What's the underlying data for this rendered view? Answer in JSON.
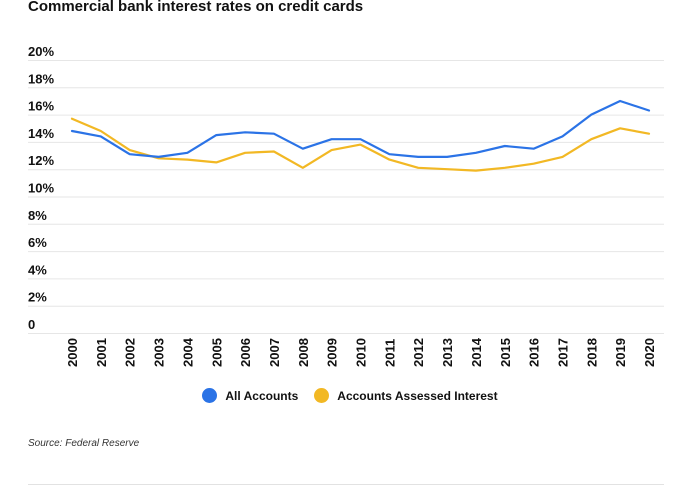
{
  "chart_data": {
    "type": "line",
    "title": "Commercial bank interest rates on credit cards",
    "xlabel": "",
    "ylabel": "",
    "x": [
      "2000",
      "2001",
      "2002",
      "2003",
      "2004",
      "2005",
      "2006",
      "2007",
      "2008",
      "2009",
      "2010",
      "2011",
      "2012",
      "2013",
      "2014",
      "2015",
      "2016",
      "2017",
      "2018",
      "2019",
      "2020"
    ],
    "ylim": [
      0,
      20
    ],
    "yticks": [
      0,
      2,
      4,
      6,
      8,
      10,
      12,
      14,
      16,
      18,
      20
    ],
    "ytick_labels": [
      "0",
      "2%",
      "4%",
      "6%",
      "8%",
      "10%",
      "12%",
      "14%",
      "16%",
      "18%",
      "20%"
    ],
    "grid": true,
    "legend_position": "bottom",
    "series": [
      {
        "name": "All Accounts",
        "color": "#2b73e6",
        "values": [
          14.8,
          14.4,
          13.1,
          12.9,
          13.2,
          14.5,
          14.7,
          14.6,
          13.5,
          14.2,
          14.2,
          13.1,
          12.9,
          12.9,
          13.2,
          13.7,
          13.5,
          14.4,
          16.0,
          17.0,
          16.3
        ]
      },
      {
        "name": "Accounts Assessed Interest",
        "color": "#f2b824",
        "values": [
          15.7,
          14.8,
          13.4,
          12.8,
          12.7,
          12.5,
          13.2,
          13.3,
          12.1,
          13.4,
          13.8,
          12.7,
          12.1,
          12.0,
          11.9,
          12.1,
          12.4,
          12.9,
          14.2,
          15.0,
          14.6
        ]
      }
    ]
  },
  "source": "Source: Federal Reserve"
}
